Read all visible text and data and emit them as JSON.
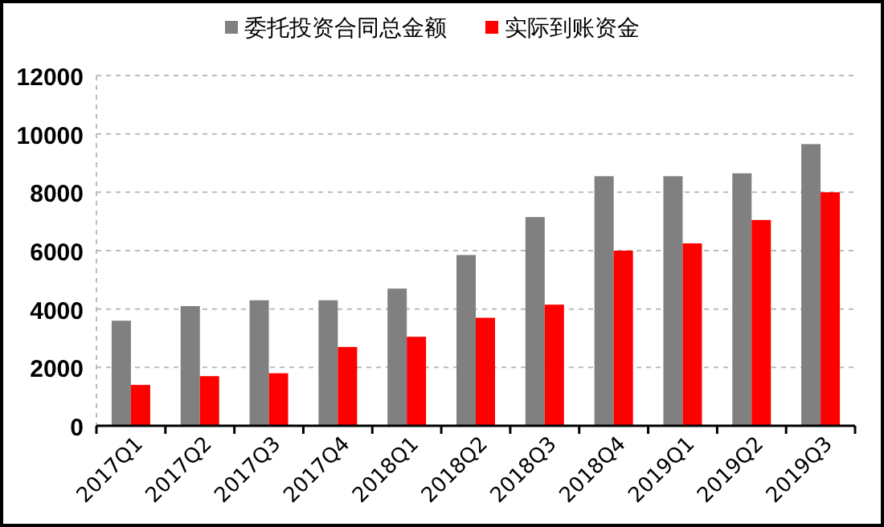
{
  "chart_data": {
    "type": "bar",
    "categories": [
      "2017Q1",
      "2017Q2",
      "2017Q3",
      "2017Q4",
      "2018Q1",
      "2018Q2",
      "2018Q3",
      "2018Q4",
      "2019Q1",
      "2019Q2",
      "2019Q3"
    ],
    "series": [
      {
        "name": "委托投资合同总金额",
        "color": "#808080",
        "values": [
          3600,
          4100,
          4300,
          4300,
          4700,
          5850,
          7150,
          8550,
          8550,
          8650,
          9650
        ]
      },
      {
        "name": "实际到账资金",
        "color": "#ff0000",
        "values": [
          1400,
          1700,
          1800,
          2700,
          3050,
          3700,
          4150,
          6000,
          6250,
          7050,
          8000
        ]
      }
    ],
    "ylim": [
      0,
      12000
    ],
    "yticks": [
      0,
      2000,
      4000,
      6000,
      8000,
      10000,
      12000
    ],
    "grid": "y",
    "legend": "top"
  }
}
